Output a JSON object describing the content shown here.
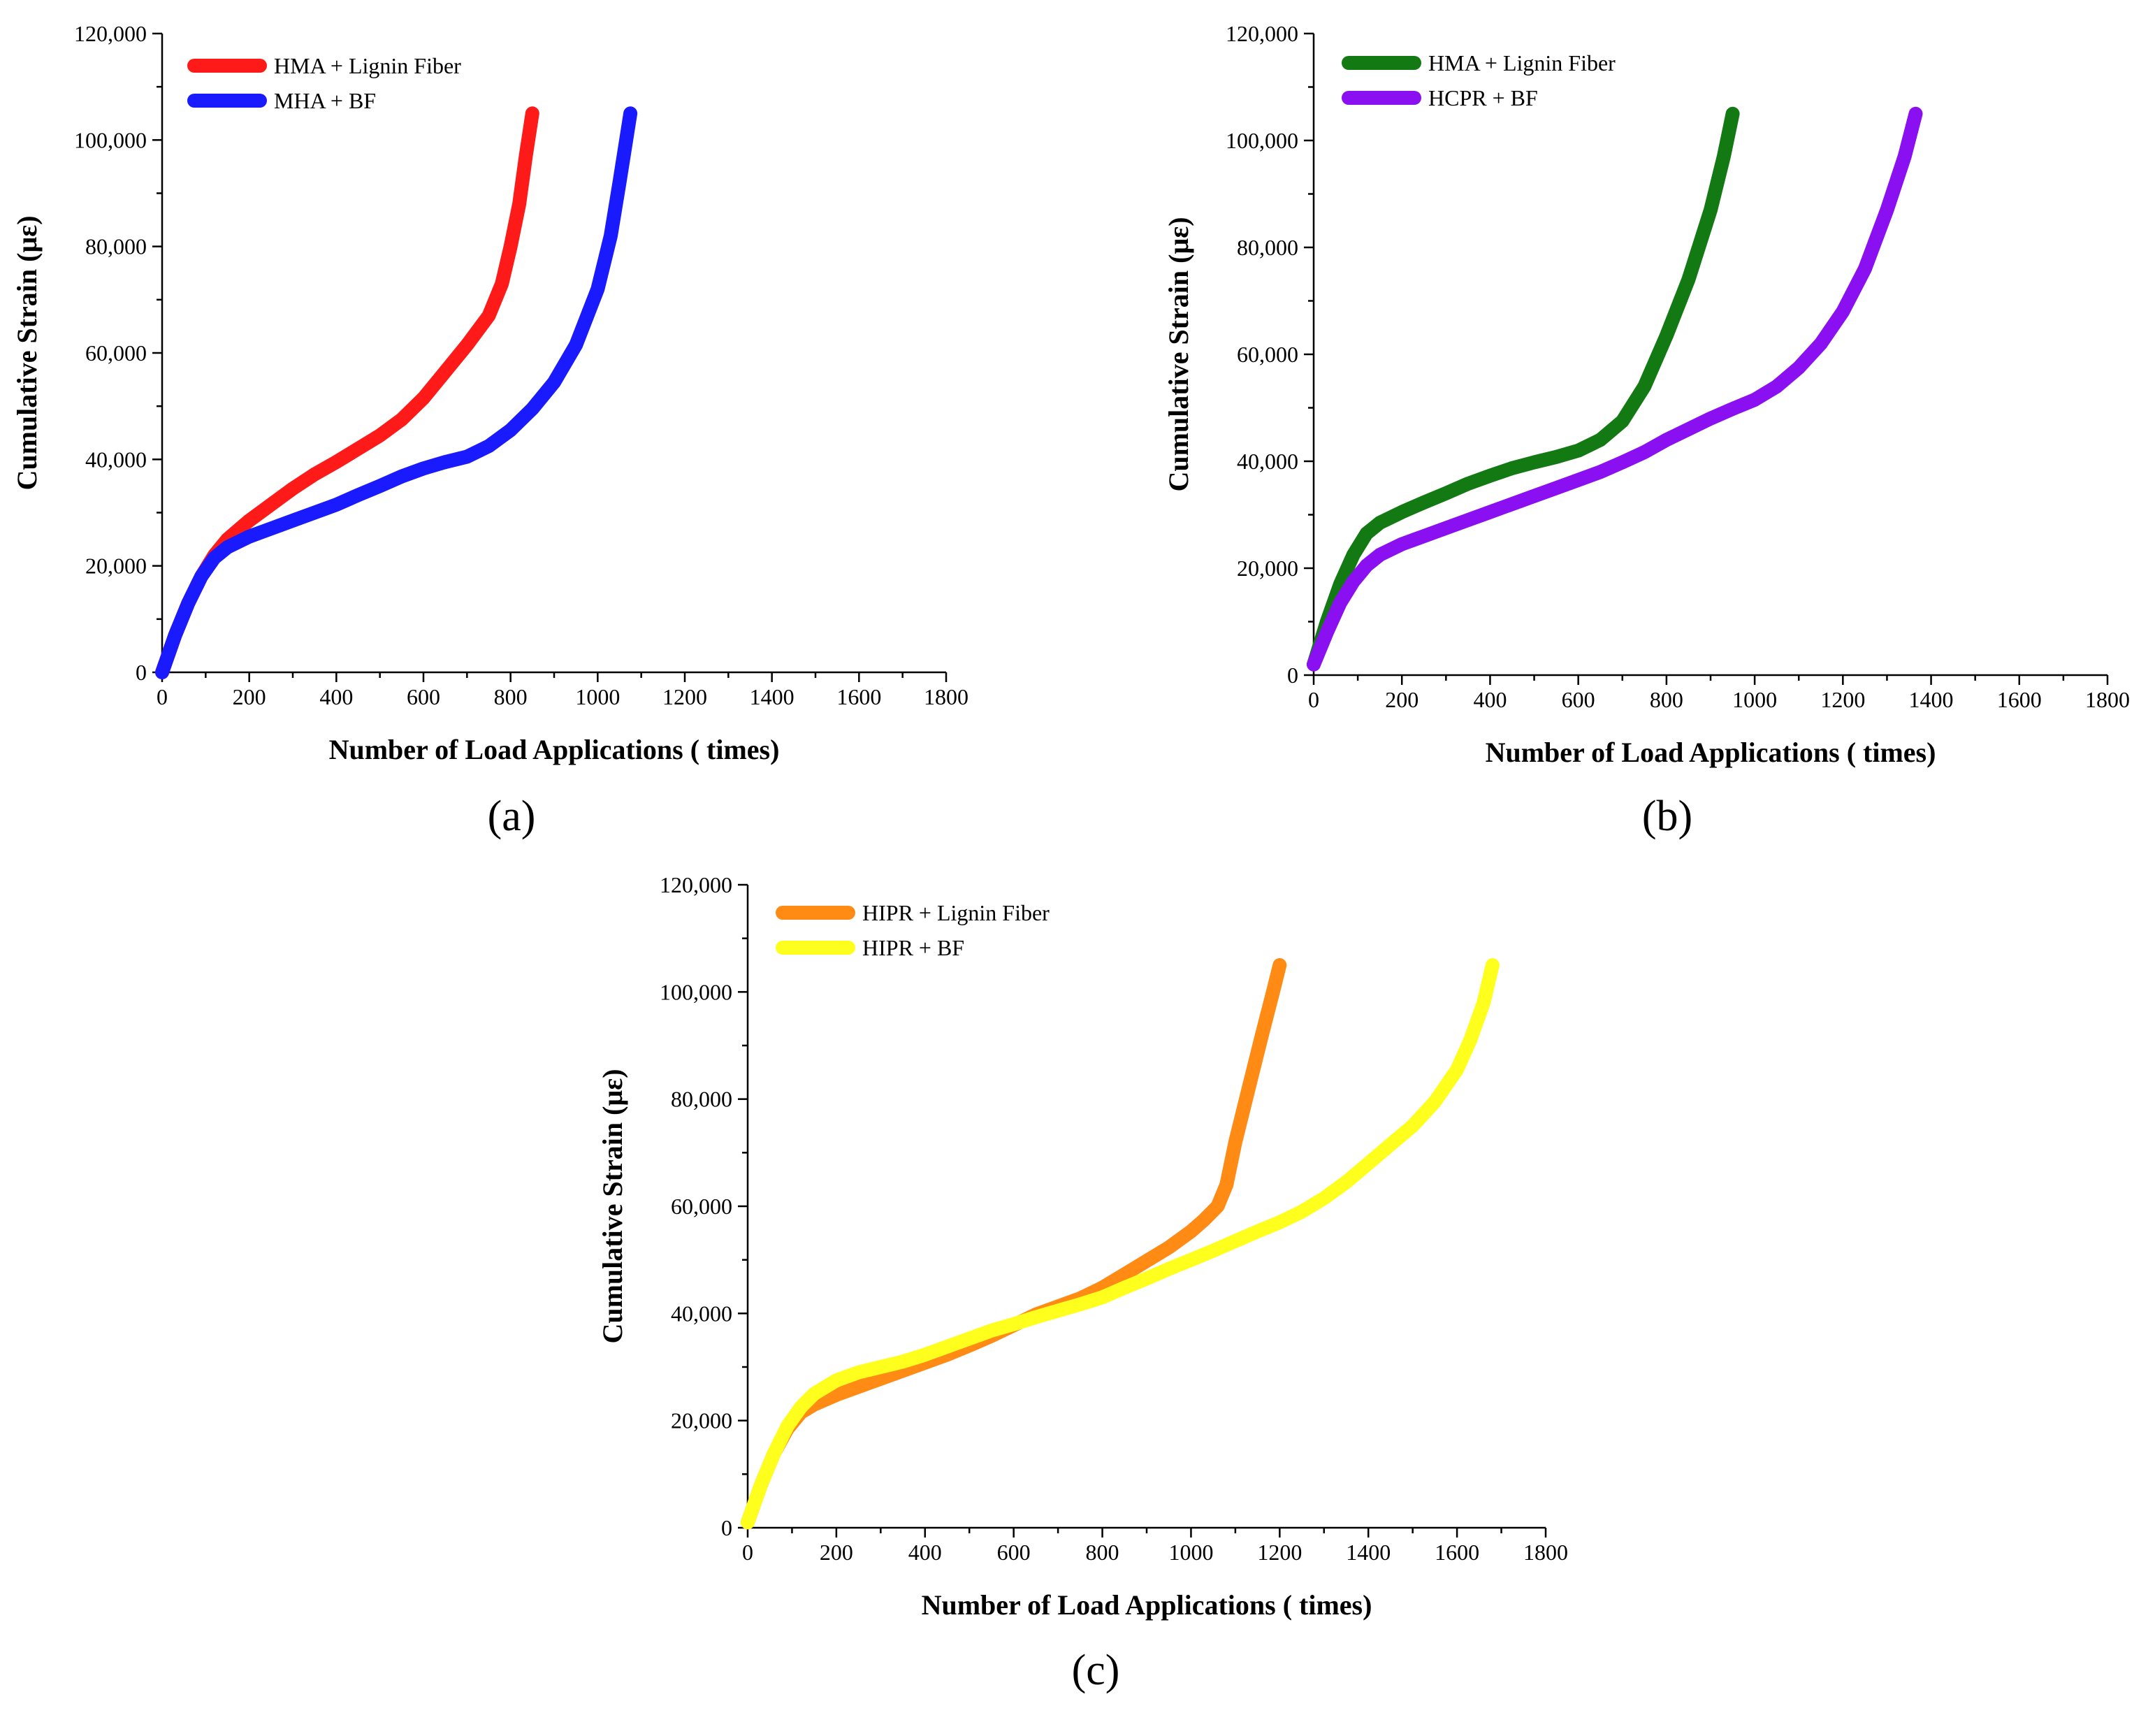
{
  "chart_data": [
    {
      "type": "line",
      "panel_label": "(a)",
      "xlabel": "Number of Load Applications ( times)",
      "ylabel": "Cumulative Strain (με)",
      "xlim": [
        0,
        1800
      ],
      "ylim": [
        0,
        120000
      ],
      "xticks": [
        0,
        200,
        400,
        600,
        800,
        1000,
        1200,
        1400,
        1600,
        1800
      ],
      "xtick_labels": [
        "0",
        "200",
        "400",
        "600",
        "800",
        "1000",
        "1200",
        "1400",
        "1600",
        "1800"
      ],
      "yticks": [
        0,
        20000,
        40000,
        60000,
        80000,
        100000,
        120000
      ],
      "ytick_labels": [
        "0",
        "20,000",
        "40,000",
        "60,000",
        "80,000",
        "100,000",
        "120,000"
      ],
      "legend_position": "top-left",
      "grid": false,
      "series": [
        {
          "name": "HMA + Lignin Fiber",
          "color": "#ff1a1a",
          "x": [
            0,
            30,
            60,
            90,
            120,
            150,
            200,
            250,
            300,
            350,
            400,
            450,
            500,
            550,
            600,
            650,
            700,
            750,
            780,
            800,
            820,
            835,
            850
          ],
          "y": [
            0,
            7000,
            13000,
            18000,
            22000,
            25000,
            28500,
            31500,
            34500,
            37200,
            39500,
            42000,
            44500,
            47500,
            51500,
            56500,
            61500,
            67000,
            73000,
            80000,
            88000,
            97000,
            105000
          ]
        },
        {
          "name": "MHA + BF",
          "color": "#1a1aff",
          "x": [
            0,
            30,
            60,
            90,
            120,
            150,
            200,
            250,
            300,
            350,
            400,
            450,
            500,
            550,
            600,
            650,
            700,
            750,
            800,
            850,
            900,
            950,
            1000,
            1030,
            1050,
            1075
          ],
          "y": [
            0,
            7000,
            13000,
            18000,
            21500,
            23500,
            25500,
            27000,
            28500,
            30000,
            31500,
            33300,
            35000,
            36800,
            38300,
            39500,
            40500,
            42500,
            45500,
            49500,
            54500,
            61500,
            72000,
            82000,
            92000,
            105000
          ]
        }
      ]
    },
    {
      "type": "line",
      "panel_label": "(b)",
      "xlabel": "Number of Load Applications ( times)",
      "ylabel": "Cumulative Strain (με)",
      "xlim": [
        0,
        1800
      ],
      "ylim": [
        0,
        120000
      ],
      "xticks": [
        0,
        200,
        400,
        600,
        800,
        1000,
        1200,
        1400,
        1600,
        1800
      ],
      "xtick_labels": [
        "0",
        "200",
        "400",
        "600",
        "800",
        "1000",
        "1200",
        "1400",
        "1600",
        "1800"
      ],
      "yticks": [
        0,
        20000,
        40000,
        60000,
        80000,
        100000,
        120000
      ],
      "ytick_labels": [
        "0",
        "20,000",
        "40,000",
        "60,000",
        "80,000",
        "100,000",
        "120,000"
      ],
      "legend_position": "top-left",
      "grid": false,
      "series": [
        {
          "name": "HMA + Lignin Fiber",
          "color": "#137a13",
          "x": [
            0,
            30,
            60,
            90,
            120,
            150,
            200,
            250,
            300,
            350,
            400,
            450,
            500,
            550,
            600,
            650,
            700,
            750,
            800,
            850,
            900,
            930,
            950
          ],
          "y": [
            2000,
            10000,
            17000,
            22500,
            26500,
            28500,
            30500,
            32300,
            34000,
            35800,
            37300,
            38700,
            39800,
            40800,
            42000,
            44000,
            47500,
            54000,
            63500,
            74000,
            87000,
            97000,
            105000
          ]
        },
        {
          "name": "HCPR + BF",
          "color": "#8a10f2",
          "x": [
            0,
            30,
            60,
            90,
            120,
            150,
            200,
            250,
            300,
            350,
            400,
            450,
            500,
            550,
            600,
            650,
            700,
            750,
            800,
            850,
            900,
            950,
            1000,
            1050,
            1100,
            1150,
            1200,
            1250,
            1300,
            1340,
            1365
          ],
          "y": [
            2000,
            8000,
            13500,
            17500,
            20500,
            22500,
            24500,
            26000,
            27500,
            29000,
            30500,
            32000,
            33500,
            35000,
            36500,
            38000,
            39800,
            41700,
            44000,
            46000,
            48000,
            49800,
            51500,
            54000,
            57500,
            62000,
            68000,
            76000,
            87000,
            97000,
            105000
          ]
        }
      ]
    },
    {
      "type": "line",
      "panel_label": "(c)",
      "xlabel": "Number of Load Applications ( times)",
      "ylabel": "Cumulative Strain (με)",
      "xlim": [
        0,
        1800
      ],
      "ylim": [
        0,
        120000
      ],
      "xticks": [
        0,
        200,
        400,
        600,
        800,
        1000,
        1200,
        1400,
        1600,
        1800
      ],
      "xtick_labels": [
        "0",
        "200",
        "400",
        "600",
        "800",
        "1000",
        "1200",
        "1400",
        "1600",
        "1800"
      ],
      "yticks": [
        0,
        20000,
        40000,
        60000,
        80000,
        100000,
        120000
      ],
      "ytick_labels": [
        "0",
        "20,000",
        "40,000",
        "60,000",
        "80,000",
        "100,000",
        "120,000"
      ],
      "legend_position": "top-left",
      "grid": false,
      "series": [
        {
          "name": "HIPR + Lignin Fiber",
          "color": "#ff8a14",
          "x": [
            0,
            30,
            60,
            90,
            120,
            150,
            200,
            250,
            300,
            350,
            400,
            450,
            500,
            550,
            600,
            650,
            700,
            750,
            800,
            850,
            900,
            950,
            1000,
            1030,
            1060,
            1080,
            1100,
            1130,
            1160,
            1185,
            1200
          ],
          "y": [
            1000,
            8000,
            14000,
            18500,
            21500,
            23000,
            24800,
            26300,
            27800,
            29300,
            30800,
            32300,
            34000,
            35800,
            37800,
            39800,
            41300,
            42800,
            44800,
            47300,
            49800,
            52300,
            55300,
            57500,
            60000,
            64000,
            72000,
            82000,
            92000,
            100000,
            105000
          ]
        },
        {
          "name": "HIPR + BF",
          "color": "#ffff1e",
          "x": [
            0,
            30,
            60,
            90,
            120,
            150,
            200,
            250,
            300,
            350,
            400,
            450,
            500,
            550,
            600,
            650,
            700,
            750,
            800,
            850,
            900,
            950,
            1000,
            1050,
            1100,
            1150,
            1200,
            1250,
            1300,
            1350,
            1400,
            1450,
            1500,
            1550,
            1600,
            1630,
            1660,
            1680
          ],
          "y": [
            1000,
            8000,
            14000,
            19000,
            22500,
            25000,
            27500,
            29000,
            30000,
            31000,
            32300,
            33800,
            35300,
            36800,
            38000,
            39300,
            40500,
            41700,
            43000,
            44800,
            46500,
            48300,
            50000,
            51700,
            53500,
            55300,
            57000,
            59000,
            61500,
            64500,
            68000,
            71500,
            75000,
            79500,
            85500,
            91000,
            98000,
            105000
          ]
        }
      ]
    }
  ]
}
